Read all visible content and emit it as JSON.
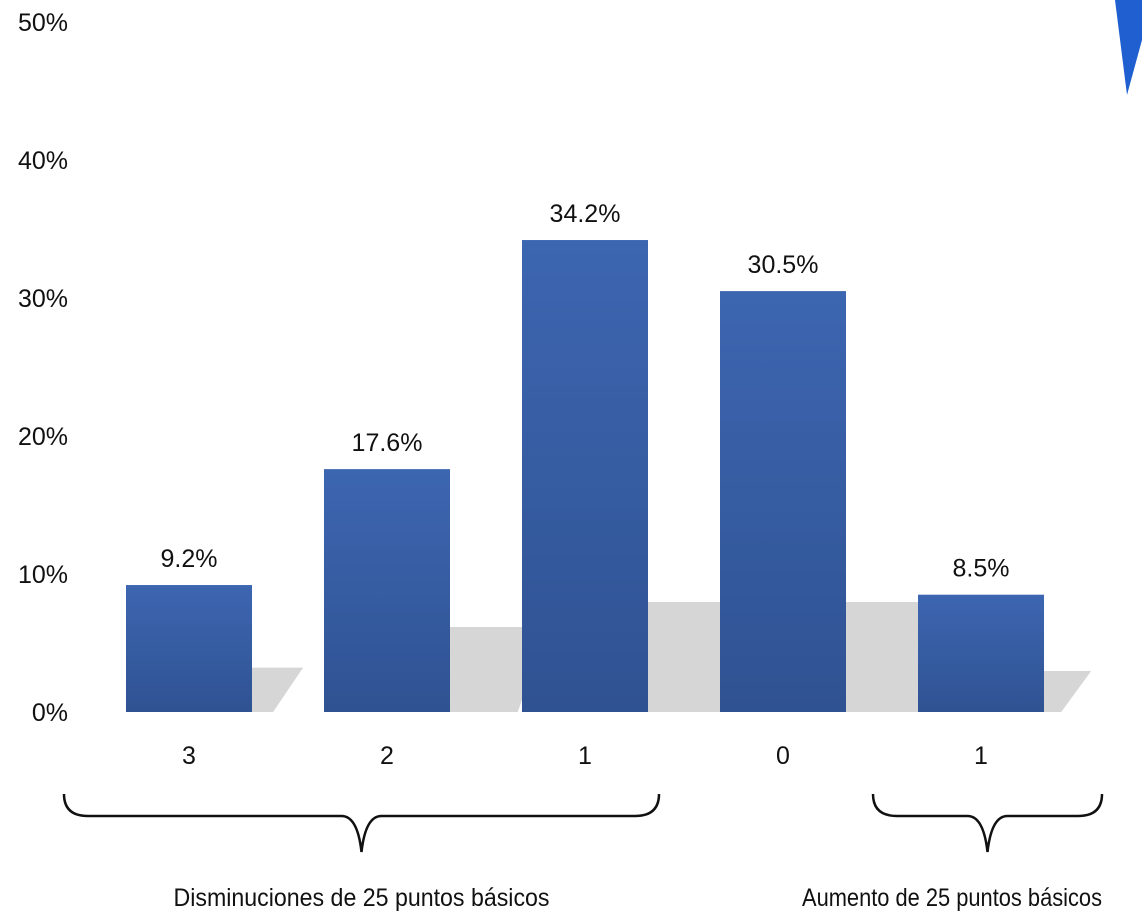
{
  "chart_data": {
    "type": "bar",
    "categories": [
      "3",
      "2",
      "1",
      "0",
      "1"
    ],
    "values": [
      9.2,
      17.6,
      34.2,
      30.5,
      8.5
    ],
    "value_labels": [
      "9.2%",
      "17.6%",
      "34.2%",
      "30.5%",
      "8.5%"
    ],
    "ylim": [
      0,
      50
    ],
    "y_ticks": [
      {
        "value": 0,
        "label": "0%"
      },
      {
        "value": 10,
        "label": "10%"
      },
      {
        "value": 20,
        "label": "20%"
      },
      {
        "value": 30,
        "label": "30%"
      },
      {
        "value": 40,
        "label": "40%"
      },
      {
        "value": 50,
        "label": "50%"
      }
    ],
    "grid": false,
    "legend": "none",
    "groups": [
      {
        "label": "Disminuciones de 25 puntos básicos",
        "categories": [
          0,
          1,
          2
        ]
      },
      {
        "label": "Aumento de 25 puntos básicos",
        "categories": [
          4
        ]
      }
    ],
    "bar_color_top": "#3d66b1",
    "bar_color_bottom": "#2f5292",
    "shadow_color": "#c8c8c8",
    "accent_color": "#1f5fd0"
  }
}
